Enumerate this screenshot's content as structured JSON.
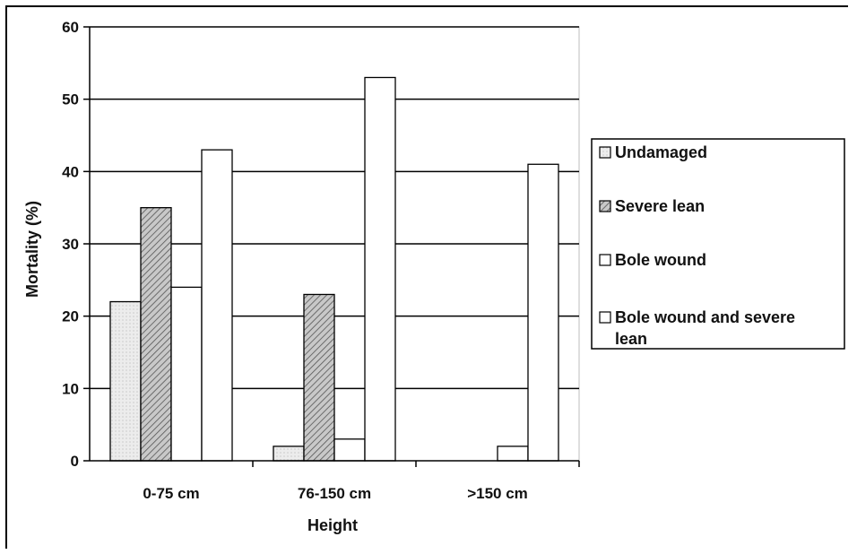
{
  "chart_data": {
    "type": "bar",
    "title": "",
    "xlabel": "Height",
    "ylabel": "Mortality (%)",
    "ylim": [
      0,
      60
    ],
    "yticks": [
      0,
      10,
      20,
      30,
      40,
      50,
      60
    ],
    "grid": true,
    "legend_position": "right",
    "categories": [
      "0-75 cm",
      "76-150 cm",
      ">150 cm"
    ],
    "series": [
      {
        "name": "Undamaged",
        "values": [
          22,
          2,
          0
        ],
        "fill": "#eaeaea",
        "pattern": "dots"
      },
      {
        "name": "Severe lean",
        "values": [
          35,
          23,
          0
        ],
        "fill": "#bdbdbd",
        "pattern": "hatch"
      },
      {
        "name": "Bole wound",
        "values": [
          24,
          3,
          2
        ],
        "fill": "#ffffff",
        "pattern": "none"
      },
      {
        "name": "Bole wound and severe lean",
        "legend_lines": [
          "Bole wound and severe",
          "lean"
        ],
        "values": [
          43,
          53,
          41
        ],
        "fill": "#ffffff",
        "pattern": "none"
      }
    ]
  }
}
